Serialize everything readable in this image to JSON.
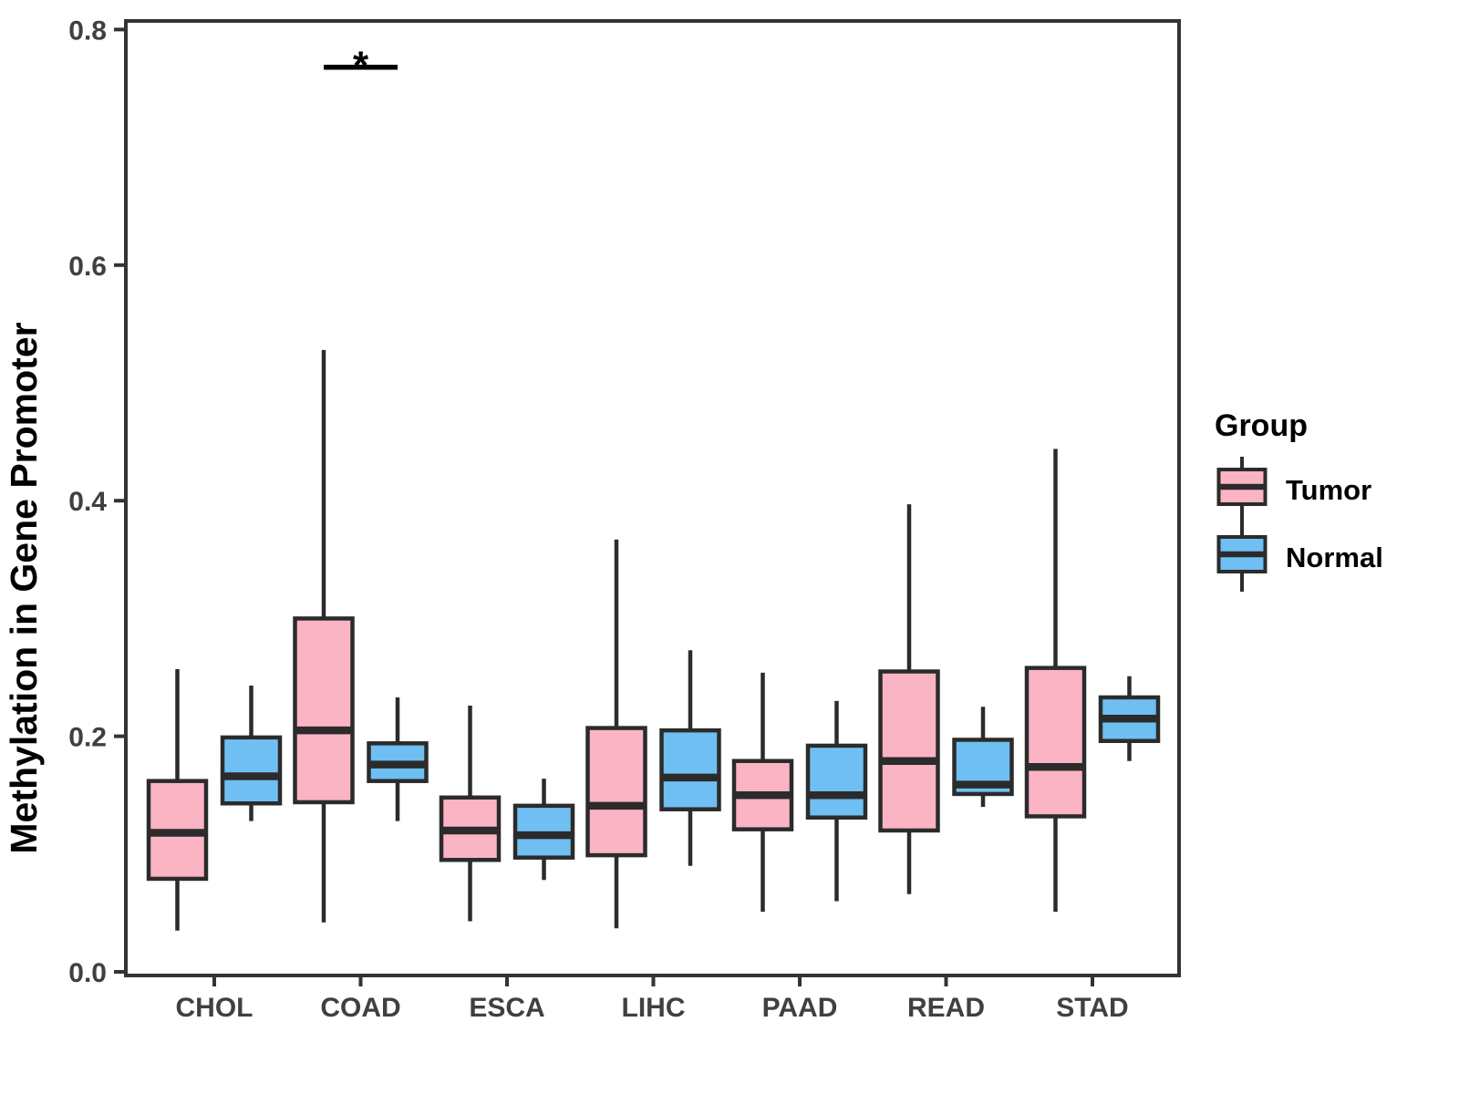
{
  "figure": {
    "background": "#FFFFFF"
  },
  "legend": {
    "title": "Group",
    "items": [
      {
        "label": "Tumor"
      },
      {
        "label": "Normal"
      }
    ]
  },
  "chart_data": {
    "type": "boxplot",
    "title": "",
    "xlabel": "",
    "ylabel": "Methylation in Gene Promoter",
    "ylim": [
      0,
      0.8
    ],
    "yticks": [
      0,
      0.2,
      0.4,
      0.6,
      0.8
    ],
    "ytick_labels": [
      "0.0",
      "0.2",
      "0.4",
      "0.6",
      "0.8"
    ],
    "categories": [
      "CHOL",
      "COAD",
      "ESCA",
      "LIHC",
      "PAAD",
      "READ",
      "STAD"
    ],
    "grid": false,
    "legend_position": "right",
    "series": [
      {
        "name": "Tumor",
        "color": "#FAB4C4",
        "stats": [
          {
            "low": 0.035,
            "q1": 0.079,
            "median": 0.118,
            "q3": 0.162,
            "high": 0.257
          },
          {
            "low": 0.042,
            "q1": 0.144,
            "median": 0.205,
            "q3": 0.3,
            "high": 0.528
          },
          {
            "low": 0.043,
            "q1": 0.095,
            "median": 0.12,
            "q3": 0.148,
            "high": 0.226
          },
          {
            "low": 0.037,
            "q1": 0.099,
            "median": 0.141,
            "q3": 0.207,
            "high": 0.367
          },
          {
            "low": 0.051,
            "q1": 0.121,
            "median": 0.15,
            "q3": 0.179,
            "high": 0.254
          },
          {
            "low": 0.066,
            "q1": 0.12,
            "median": 0.179,
            "q3": 0.255,
            "high": 0.397
          },
          {
            "low": 0.051,
            "q1": 0.132,
            "median": 0.174,
            "q3": 0.258,
            "high": 0.444
          }
        ]
      },
      {
        "name": "Normal",
        "color": "#6FBFF2",
        "stats": [
          {
            "low": 0.128,
            "q1": 0.143,
            "median": 0.166,
            "q3": 0.199,
            "high": 0.243
          },
          {
            "low": 0.128,
            "q1": 0.162,
            "median": 0.176,
            "q3": 0.194,
            "high": 0.233
          },
          {
            "low": 0.078,
            "q1": 0.097,
            "median": 0.116,
            "q3": 0.141,
            "high": 0.164
          },
          {
            "low": 0.09,
            "q1": 0.138,
            "median": 0.165,
            "q3": 0.205,
            "high": 0.273
          },
          {
            "low": 0.06,
            "q1": 0.131,
            "median": 0.15,
            "q3": 0.192,
            "high": 0.23
          },
          {
            "low": 0.14,
            "q1": 0.151,
            "median": 0.159,
            "q3": 0.197,
            "high": 0.225
          },
          {
            "low": 0.179,
            "q1": 0.196,
            "median": 0.215,
            "q3": 0.233,
            "high": 0.251
          }
        ]
      }
    ],
    "significance": [
      {
        "category": "COAD",
        "label": "*",
        "y": 0.768
      }
    ],
    "colors": {
      "box_outline": "#2B2B2B",
      "axis": "#333333",
      "tick_labels": "#404040",
      "text": "#000000"
    }
  }
}
